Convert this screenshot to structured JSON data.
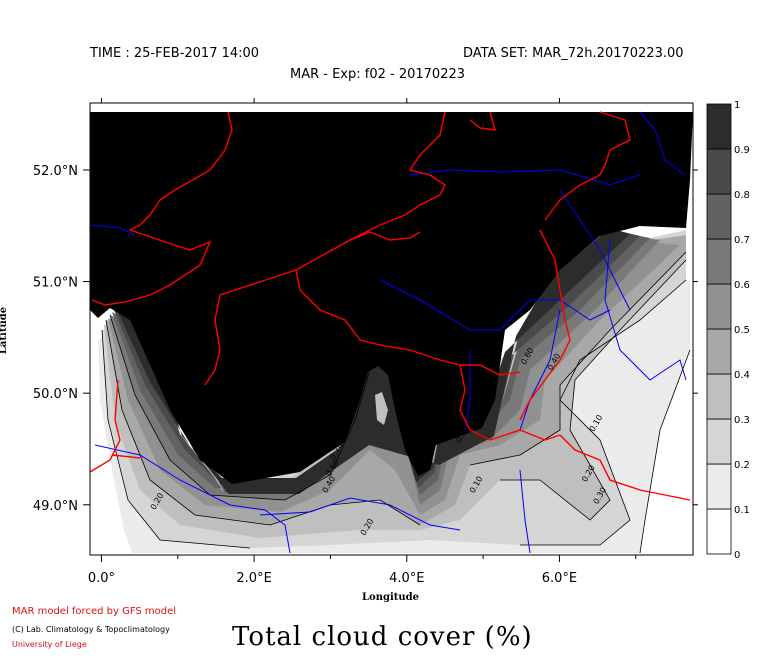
{
  "header": {
    "time": "TIME : 25-FEB-2017 14:00",
    "dataset": "DATA SET: MAR_72h.20170223.00",
    "experiment": "MAR - Exp: f02 - 20170223"
  },
  "footer": {
    "credit_line1": "MAR model forced by GFS model",
    "credit_line2": "(C) Lab. Climatology & Topoclimatology",
    "credit_line3": "University of Liege",
    "title": "Total cloud cover (%)"
  },
  "colors": {
    "coast_border": "#ff0000",
    "rivers": "#0000ff",
    "contour_line": "#000000"
  },
  "chart_data": {
    "type": "heatmap",
    "xlabel": "Longitude",
    "ylabel": "Latitude",
    "xlim": [
      -0.15,
      7.75
    ],
    "ylim": [
      48.55,
      52.6
    ],
    "x_ticks": [
      {
        "value": 0,
        "label": "0.0°"
      },
      {
        "value": 2,
        "label": "2.0°E"
      },
      {
        "value": 4,
        "label": "4.0°E"
      },
      {
        "value": 6,
        "label": "6.0°E"
      }
    ],
    "y_ticks": [
      {
        "value": 49,
        "label": "49.0°N"
      },
      {
        "value": 50,
        "label": "50.0°N"
      },
      {
        "value": 51,
        "label": "51.0°N"
      },
      {
        "value": 52,
        "label": "52.0°N"
      }
    ],
    "colorbar": {
      "levels": [
        0,
        0.1,
        0.2,
        0.3,
        0.4,
        0.5,
        0.6,
        0.7,
        0.8,
        0.9,
        1
      ],
      "labels": [
        "0",
        "0.1",
        "0.2",
        "0.3",
        "0.4",
        "0.5",
        "0.6",
        "0.7",
        "0.8",
        "0.9",
        "1"
      ],
      "colors": [
        "#ffffff",
        "#ebebeb",
        "#d5d5d5",
        "#bfbfbf",
        "#a8a8a8",
        "#919191",
        "#797979",
        "#626262",
        "#4a4a4a",
        "#2c2c2c"
      ]
    },
    "contour_labels": [
      {
        "lon": 0.7,
        "lat": 48.95,
        "text": "0.20"
      },
      {
        "lon": 3.45,
        "lat": 48.72,
        "text": "0.20"
      },
      {
        "lon": 4.88,
        "lat": 49.1,
        "text": "0.10"
      },
      {
        "lon": 6.35,
        "lat": 49.2,
        "text": "0.20"
      },
      {
        "lon": 6.5,
        "lat": 49.0,
        "text": "0.30"
      },
      {
        "lon": 6.45,
        "lat": 49.65,
        "text": "0.10"
      },
      {
        "lon": 5.9,
        "lat": 50.2,
        "text": "0.40"
      },
      {
        "lon": 5.55,
        "lat": 50.25,
        "text": "0.60"
      },
      {
        "lon": 3.05,
        "lat": 49.4,
        "text": "0.70"
      },
      {
        "lon": 3.0,
        "lat": 49.25,
        "text": "0.50"
      },
      {
        "lon": 2.95,
        "lat": 49.1,
        "text": "0.40"
      },
      {
        "lon": 3.2,
        "lat": 49.7,
        "text": "0.80"
      },
      {
        "lon": 4.7,
        "lat": 49.55,
        "text": "0.60"
      }
    ]
  }
}
